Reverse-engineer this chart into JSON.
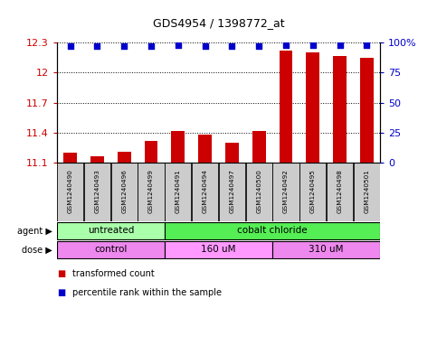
{
  "title": "GDS4954 / 1398772_at",
  "samples": [
    "GSM1240490",
    "GSM1240493",
    "GSM1240496",
    "GSM1240499",
    "GSM1240491",
    "GSM1240494",
    "GSM1240497",
    "GSM1240500",
    "GSM1240492",
    "GSM1240495",
    "GSM1240498",
    "GSM1240501"
  ],
  "bar_values": [
    11.2,
    11.17,
    11.21,
    11.32,
    11.42,
    11.38,
    11.3,
    11.42,
    12.22,
    12.2,
    12.17,
    12.15
  ],
  "percentile_values": [
    97,
    97,
    97,
    97,
    98,
    97,
    97,
    97,
    98,
    98,
    98,
    98
  ],
  "ymin": 11.1,
  "ymax": 12.3,
  "yticks": [
    11.1,
    11.4,
    11.7,
    12.0,
    12.3
  ],
  "ytick_labels": [
    "11.1",
    "11.4",
    "11.7",
    "12",
    "12.3"
  ],
  "y2min": 0,
  "y2max": 100,
  "y2ticks": [
    0,
    25,
    50,
    75,
    100
  ],
  "y2tick_labels": [
    "0",
    "25",
    "50",
    "75",
    "100%"
  ],
  "bar_color": "#cc0000",
  "dot_color": "#0000cc",
  "agent_groups": [
    {
      "label": "untreated",
      "start": 0,
      "end": 4,
      "color": "#aaffaa"
    },
    {
      "label": "cobalt chloride",
      "start": 4,
      "end": 12,
      "color": "#55ee55"
    }
  ],
  "dose_groups": [
    {
      "label": "control",
      "start": 0,
      "end": 4,
      "color": "#ee88ee"
    },
    {
      "label": "160 uM",
      "start": 4,
      "end": 8,
      "color": "#ff99ff"
    },
    {
      "label": "310 uM",
      "start": 8,
      "end": 12,
      "color": "#ee88ee"
    }
  ],
  "legend_items": [
    {
      "label": "transformed count",
      "color": "#cc0000"
    },
    {
      "label": "percentile rank within the sample",
      "color": "#0000cc"
    }
  ],
  "sample_box_color": "#cccccc",
  "left_tick_color": "#cc0000",
  "right_tick_color": "#0000cc",
  "agent_label": "agent",
  "dose_label": "dose"
}
